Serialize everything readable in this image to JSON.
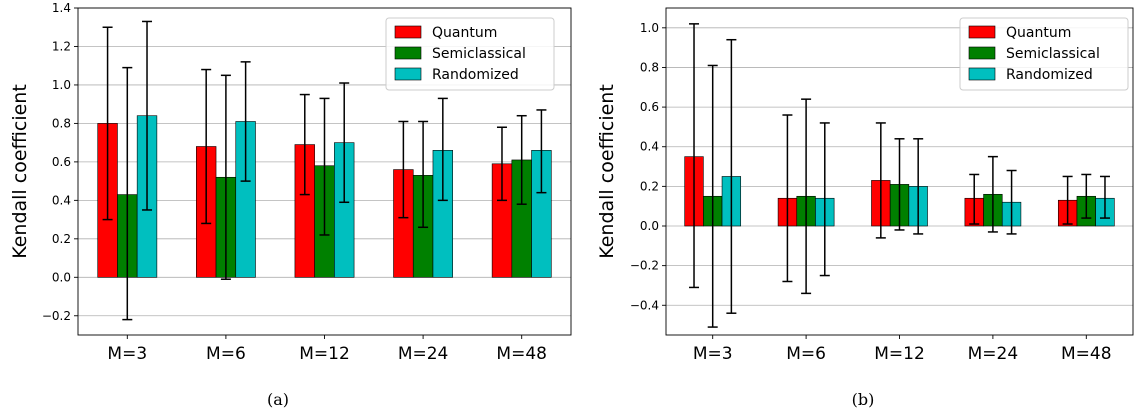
{
  "colors": {
    "Quantum": "#ff0000",
    "Semiclassical": "#008000",
    "Randomized": "#00bfbf",
    "grid": "#b0b0b0"
  },
  "chart_data": [
    {
      "type": "bar",
      "caption": "(a)",
      "ylabel": "Kendall coefficient",
      "xlabel": "",
      "categories": [
        "M=3",
        "M=6",
        "M=12",
        "M=24",
        "M=48"
      ],
      "ylim": [
        -0.3,
        1.4
      ],
      "yticks": [
        -0.2,
        0.0,
        0.2,
        0.4,
        0.6,
        0.8,
        1.0,
        1.2,
        1.4
      ],
      "ytick_labels": [
        "−0.2",
        "0.0",
        "0.2",
        "0.4",
        "0.6",
        "0.8",
        "1.0",
        "1.2",
        "1.4"
      ],
      "grid": "horizontal",
      "legend": "top-right",
      "series": [
        {
          "name": "Quantum",
          "values": [
            0.8,
            0.68,
            0.69,
            0.56,
            0.59
          ],
          "err_low": [
            0.3,
            0.28,
            0.43,
            0.31,
            0.4
          ],
          "err_high": [
            1.3,
            1.08,
            0.95,
            0.81,
            0.78
          ]
        },
        {
          "name": "Semiclassical",
          "values": [
            0.43,
            0.52,
            0.58,
            0.53,
            0.61
          ],
          "err_low": [
            -0.22,
            -0.01,
            0.22,
            0.26,
            0.38
          ],
          "err_high": [
            1.09,
            1.05,
            0.93,
            0.81,
            0.84
          ]
        },
        {
          "name": "Randomized",
          "values": [
            0.84,
            0.81,
            0.7,
            0.66,
            0.66
          ],
          "err_low": [
            0.35,
            0.5,
            0.39,
            0.4,
            0.44
          ],
          "err_high": [
            1.33,
            1.12,
            1.01,
            0.93,
            0.87
          ]
        }
      ]
    },
    {
      "type": "bar",
      "caption": "(b)",
      "ylabel": "Kendall coefficient",
      "xlabel": "",
      "categories": [
        "M=3",
        "M=6",
        "M=12",
        "M=24",
        "M=48"
      ],
      "ylim": [
        -0.55,
        1.1
      ],
      "yticks": [
        -0.4,
        -0.2,
        0.0,
        0.2,
        0.4,
        0.6,
        0.8,
        1.0
      ],
      "ytick_labels": [
        "−0.4",
        "−0.2",
        "0.0",
        "0.2",
        "0.4",
        "0.6",
        "0.8",
        "1.0"
      ],
      "grid": "horizontal",
      "legend": "top-right",
      "series": [
        {
          "name": "Quantum",
          "values": [
            0.35,
            0.14,
            0.23,
            0.14,
            0.13
          ],
          "err_low": [
            -0.31,
            -0.28,
            -0.06,
            0.01,
            0.01
          ],
          "err_high": [
            1.02,
            0.56,
            0.52,
            0.26,
            0.25
          ]
        },
        {
          "name": "Semiclassical",
          "values": [
            0.15,
            0.15,
            0.21,
            0.16,
            0.15
          ],
          "err_low": [
            -0.51,
            -0.34,
            -0.02,
            -0.03,
            0.04
          ],
          "err_high": [
            0.81,
            0.64,
            0.44,
            0.35,
            0.26
          ]
        },
        {
          "name": "Randomized",
          "values": [
            0.25,
            0.14,
            0.2,
            0.12,
            0.14
          ],
          "err_low": [
            -0.44,
            -0.25,
            -0.04,
            -0.04,
            0.04
          ],
          "err_high": [
            0.94,
            0.52,
            0.44,
            0.28,
            0.25
          ]
        }
      ]
    }
  ]
}
